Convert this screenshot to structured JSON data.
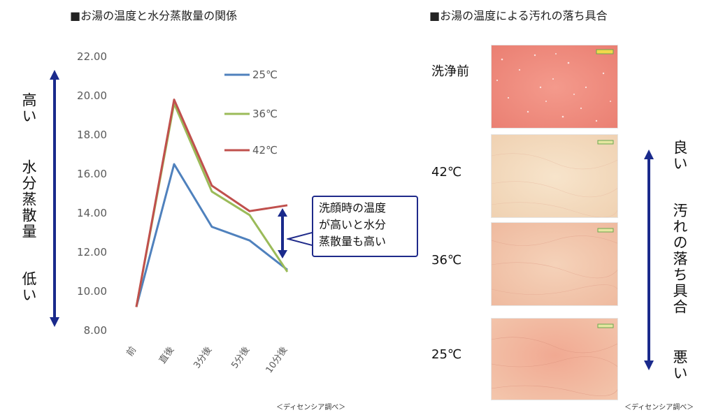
{
  "left": {
    "title": "■お湯の温度と水分蒸散量の関係",
    "axis_high": "高い",
    "axis_mid": "水分蒸散量",
    "axis_low": "低い",
    "callout_text": "洗顔時の温度\nが高いと水分\n蒸散量も高い",
    "credit": "＜ディセンシア調べ＞"
  },
  "right": {
    "title": "■お湯の温度による汚れの落ち具合",
    "rows": [
      {
        "label": "洗浄前",
        "tint": "#f08b7e"
      },
      {
        "label": "42℃",
        "tint": "#f3dcc0"
      },
      {
        "label": "36℃",
        "tint": "#f2c7ad"
      },
      {
        "label": "25℃",
        "tint": "#efb49a"
      }
    ],
    "axis_good": "良い",
    "axis_mid": "汚れの落ち具合",
    "axis_bad": "悪い",
    "credit": "＜ディセンシア調べ＞"
  },
  "colors": {
    "arrow": "#1a2a8c",
    "series_25": "#4f81bd",
    "series_36": "#9bbb59",
    "series_42": "#c0504d",
    "axis_text": "#595959"
  },
  "chart_data": {
    "type": "line",
    "categories": [
      "前",
      "直後",
      "3分後",
      "5分後",
      "10分後"
    ],
    "yticks": [
      "8.00",
      "10.00",
      "12.00",
      "14.00",
      "16.00",
      "18.00",
      "20.00",
      "22.00"
    ],
    "ylim": [
      8,
      22
    ],
    "grid": false,
    "legend_position": "top-right",
    "series": [
      {
        "name": "25℃",
        "color": "#4f81bd",
        "values": [
          9.2,
          16.5,
          13.3,
          12.6,
          11.1
        ]
      },
      {
        "name": "36℃",
        "color": "#9bbb59",
        "values": [
          9.2,
          19.6,
          15.1,
          13.9,
          11.0
        ]
      },
      {
        "name": "42℃",
        "color": "#c0504d",
        "values": [
          9.2,
          19.8,
          15.4,
          14.1,
          14.4
        ]
      }
    ]
  }
}
